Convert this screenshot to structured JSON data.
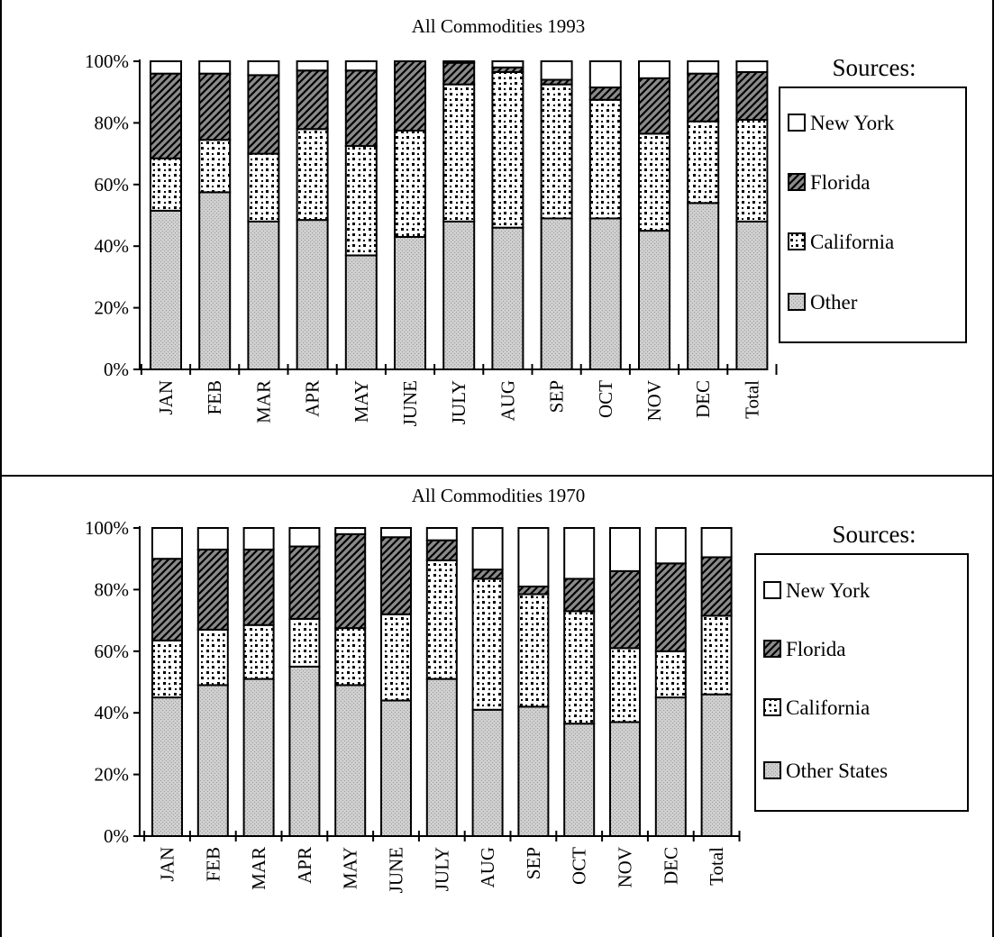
{
  "chart_data": [
    {
      "type": "bar",
      "stacked": "percent",
      "title": "All Commodities 1993",
      "categories": [
        "JAN",
        "FEB",
        "MAR",
        "APR",
        "MAY",
        "JUNE",
        "JULY",
        "AUG",
        "SEP",
        "OCT",
        "NOV",
        "DEC",
        "Total"
      ],
      "ylim": [
        0,
        100
      ],
      "yticks": [
        "0%",
        "20%",
        "40%",
        "60%",
        "80%",
        "100%"
      ],
      "legend_title": "Sources:",
      "series": [
        {
          "name": "Other",
          "pattern": "gray",
          "values": [
            51.5,
            57.5,
            48,
            48.5,
            37,
            43,
            48,
            46,
            49,
            49,
            45,
            54,
            48
          ]
        },
        {
          "name": "California",
          "pattern": "dots",
          "values": [
            17,
            17,
            22,
            29.5,
            35.5,
            34.5,
            44.5,
            50.5,
            43.5,
            38.5,
            31.5,
            26.5,
            33
          ]
        },
        {
          "name": "Florida",
          "pattern": "hatch",
          "values": [
            27.5,
            21.5,
            25.5,
            19,
            24.5,
            22.5,
            7,
            1.5,
            1.5,
            4,
            18,
            15.5,
            15.5
          ]
        },
        {
          "name": "New York",
          "pattern": "white",
          "values": [
            4,
            4,
            4.5,
            3,
            3,
            0,
            0.5,
            2,
            6,
            8.5,
            5.5,
            4,
            3.5
          ]
        }
      ]
    },
    {
      "type": "bar",
      "stacked": "percent",
      "title": "All Commodities 1970",
      "categories": [
        "JAN",
        "FEB",
        "MAR",
        "APR",
        "MAY",
        "JUNE",
        "JULY",
        "AUG",
        "SEP",
        "OCT",
        "NOV",
        "DEC",
        "Total"
      ],
      "ylim": [
        0,
        100
      ],
      "yticks": [
        "0%",
        "20%",
        "40%",
        "60%",
        "80%",
        "100%"
      ],
      "legend_title": "Sources:",
      "series": [
        {
          "name": "Other States",
          "pattern": "gray",
          "values": [
            45,
            49,
            51,
            55,
            49,
            44,
            51,
            41,
            42,
            36.5,
            37,
            45,
            46
          ]
        },
        {
          "name": "California",
          "pattern": "dots",
          "values": [
            18.5,
            18,
            17.5,
            15.5,
            18.5,
            28,
            38.5,
            42.5,
            36.5,
            36.5,
            24,
            15,
            25.5
          ]
        },
        {
          "name": "Florida",
          "pattern": "hatch",
          "values": [
            26.5,
            26,
            24.5,
            23.5,
            30.5,
            25,
            6.5,
            3,
            2.5,
            10.5,
            25,
            28.5,
            19
          ]
        },
        {
          "name": "New York",
          "pattern": "white",
          "values": [
            10,
            7,
            7,
            6,
            2,
            3,
            4,
            13.5,
            19,
            16.5,
            14,
            11.5,
            9.5
          ]
        }
      ]
    }
  ]
}
